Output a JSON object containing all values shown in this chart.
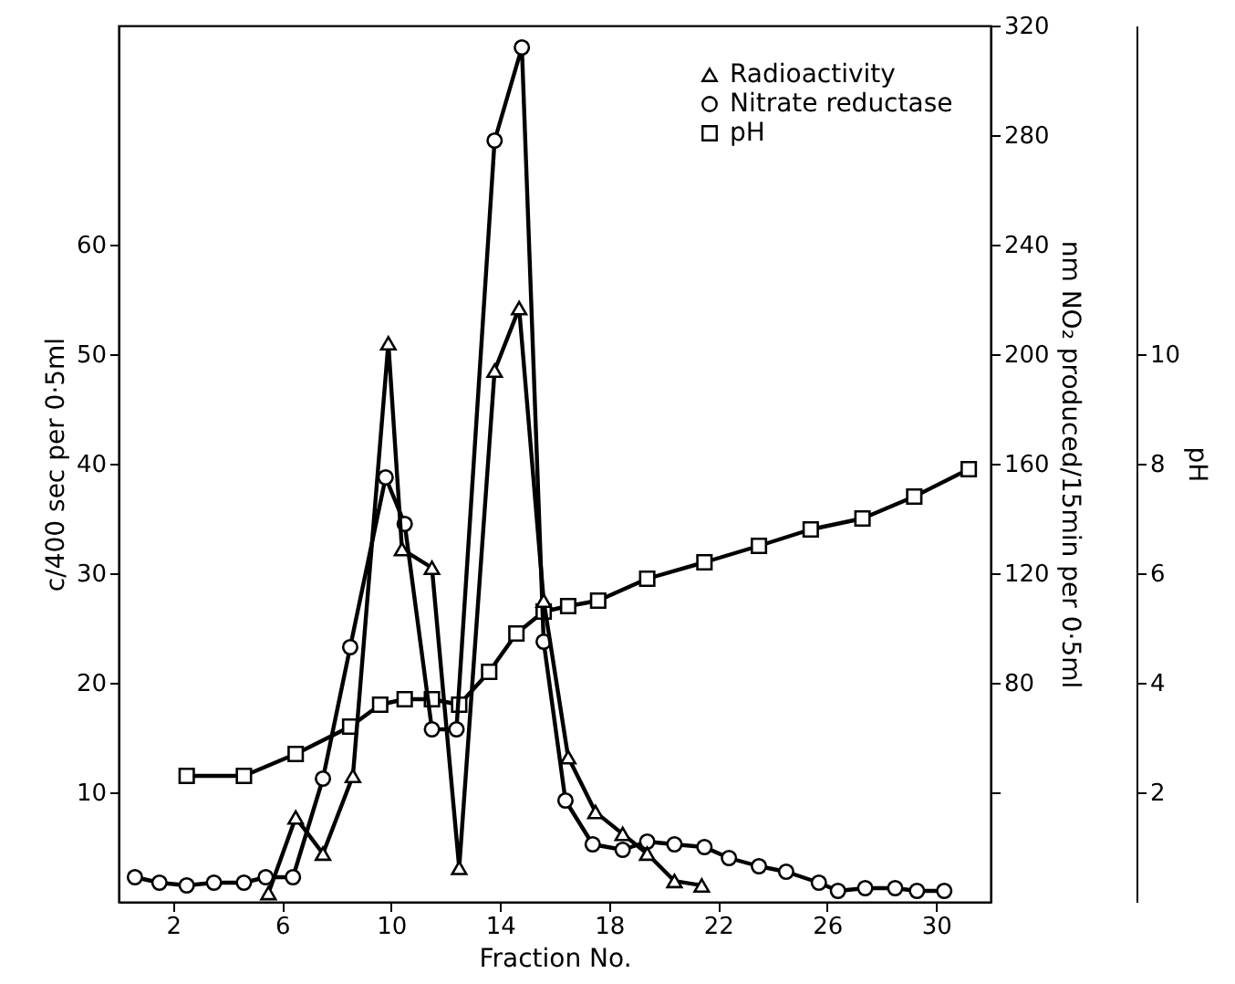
{
  "chart_data": {
    "type": "line",
    "xlabel": "Fraction No.",
    "ylabel": "c/400 sec per 0·5ml",
    "y2label": "nm NO₂ produced/15min per 0·5ml",
    "y3label": "pH",
    "xlim": [
      0,
      32
    ],
    "xticks": [
      2,
      6,
      10,
      14,
      18,
      22,
      26,
      30
    ],
    "ylim": [
      0,
      80
    ],
    "yticks": [
      10,
      20,
      30,
      40,
      50,
      60
    ],
    "y2lim": [
      0,
      320
    ],
    "y2ticks": [
      {
        "value": 40,
        "label": null
      },
      80,
      120,
      160,
      200,
      240,
      280,
      320
    ],
    "y3lim": [
      0,
      16
    ],
    "y3ticks": [
      2,
      4,
      6,
      8,
      10
    ],
    "grid": false,
    "legend": "top right",
    "line_style": "solid",
    "series": [
      {
        "name": "Radioactivity",
        "color": "#000000",
        "marker": "triangle",
        "axis": "y",
        "x": [
          5.5,
          6.5,
          7.5,
          8.6,
          9.9,
          10.4,
          11.5,
          12.5,
          13.8,
          14.7,
          15.6,
          16.5,
          17.5,
          18.5,
          19.4,
          20.4,
          21.4
        ],
        "values": [
          0.8,
          7.7,
          4.4,
          11.5,
          51,
          32.2,
          30.5,
          3.1,
          48.5,
          54.2,
          27.5,
          13.2,
          8.2,
          6.2,
          4.4,
          1.9,
          1.5
        ]
      },
      {
        "name": "Nitrate reductase",
        "color": "#000000",
        "marker": "circle",
        "axis": "y2",
        "x": [
          0.6,
          1.5,
          2.5,
          3.5,
          4.6,
          5.4,
          6.4,
          7.5,
          8.5,
          9.8,
          10.5,
          11.5,
          12.4,
          13.8,
          14.8,
          15.6,
          16.4,
          17.4,
          18.5,
          19.4,
          20.4,
          21.5,
          22.4,
          23.5,
          24.5,
          25.7,
          26.4,
          27.4,
          28.5,
          29.3,
          30.3
        ],
        "values": [
          9,
          7,
          6,
          7,
          7,
          9,
          9,
          45,
          93,
          155,
          138,
          63,
          63,
          278,
          312,
          95,
          37,
          21,
          19,
          22,
          21,
          20,
          16,
          13,
          11,
          7,
          4,
          5,
          5,
          4,
          4
        ]
      },
      {
        "name": "pH",
        "color": "#000000",
        "marker": "square",
        "axis": "y3",
        "x": [
          2.5,
          4.6,
          6.5,
          8.5,
          9.6,
          10.5,
          11.5,
          12.5,
          13.6,
          14.6,
          15.6,
          16.5,
          17.6,
          19.4,
          21.5,
          23.5,
          25.4,
          27.3,
          29.2,
          31.2
        ],
        "values": [
          2.3,
          2.3,
          2.7,
          3.2,
          3.6,
          3.7,
          3.7,
          3.6,
          4.2,
          4.9,
          5.3,
          5.4,
          5.5,
          5.9,
          6.2,
          6.5,
          6.8,
          7.0,
          7.4,
          7.9
        ]
      }
    ]
  }
}
